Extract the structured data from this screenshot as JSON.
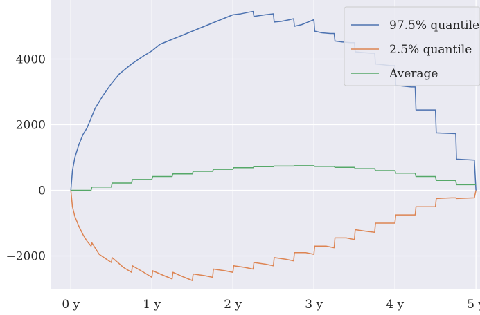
{
  "chart_data": {
    "type": "line",
    "xlabel": "",
    "ylabel": "",
    "xlim": [
      -0.25,
      5.05
    ],
    "ylim": [
      -3000,
      5800
    ],
    "x_ticks": [
      {
        "value": 0,
        "label": "0 y"
      },
      {
        "value": 1,
        "label": "1 y"
      },
      {
        "value": 2,
        "label": "2 y"
      },
      {
        "value": 3,
        "label": "3 y"
      },
      {
        "value": 4,
        "label": "4 y"
      },
      {
        "value": 5,
        "label": "5 y"
      }
    ],
    "y_ticks": [
      {
        "value": -2000,
        "label": "−2000"
      },
      {
        "value": 0,
        "label": "0"
      },
      {
        "value": 2000,
        "label": "2000"
      },
      {
        "value": 4000,
        "label": "4000"
      }
    ],
    "grid": true,
    "legend_position": "top-right",
    "series": [
      {
        "name": "97.5% quantile",
        "color": "#4c72b0",
        "x": [
          0,
          0.02,
          0.05,
          0.1,
          0.15,
          0.2,
          0.25,
          0.3,
          0.4,
          0.5,
          0.6,
          0.75,
          0.9,
          1.0,
          1.1,
          1.25,
          1.4,
          1.5,
          1.6,
          1.75,
          1.9,
          2.0,
          2.1,
          2.2,
          2.25,
          2.26,
          2.4,
          2.5,
          2.51,
          2.6,
          2.7,
          2.75,
          2.76,
          2.85,
          2.9,
          2.95,
          3.0,
          3.01,
          3.1,
          3.2,
          3.25,
          3.26,
          3.35,
          3.45,
          3.5,
          3.51,
          3.6,
          3.7,
          3.75,
          3.76,
          3.85,
          3.95,
          4.0,
          4.01,
          4.2,
          4.25,
          4.26,
          4.45,
          4.5,
          4.51,
          4.73,
          4.75,
          4.76,
          4.98,
          5.0
        ],
        "y": [
          0,
          600,
          1000,
          1400,
          1700,
          1900,
          2200,
          2500,
          2900,
          3250,
          3550,
          3850,
          4100,
          4250,
          4450,
          4600,
          4750,
          4850,
          4950,
          5100,
          5250,
          5350,
          5380,
          5430,
          5450,
          5300,
          5350,
          5380,
          5130,
          5150,
          5200,
          5230,
          5000,
          5050,
          5100,
          5150,
          5200,
          4850,
          4800,
          4780,
          4780,
          4550,
          4520,
          4500,
          4500,
          4220,
          4200,
          4180,
          4180,
          3850,
          3830,
          3800,
          3800,
          3200,
          3150,
          3150,
          2450,
          2450,
          2450,
          1750,
          1730,
          1730,
          950,
          920,
          0
        ]
      },
      {
        "name": "2.5% quantile",
        "color": "#dd8452",
        "x": [
          0,
          0.02,
          0.05,
          0.1,
          0.15,
          0.2,
          0.25,
          0.26,
          0.35,
          0.5,
          0.51,
          0.65,
          0.75,
          0.76,
          0.9,
          1.0,
          1.01,
          1.15,
          1.25,
          1.26,
          1.4,
          1.5,
          1.51,
          1.65,
          1.75,
          1.76,
          1.9,
          2.0,
          2.01,
          2.15,
          2.25,
          2.26,
          2.4,
          2.5,
          2.51,
          2.65,
          2.75,
          2.76,
          2.9,
          3.0,
          3.01,
          3.15,
          3.25,
          3.26,
          3.4,
          3.5,
          3.51,
          3.65,
          3.75,
          3.76,
          3.9,
          4.0,
          4.01,
          4.15,
          4.25,
          4.26,
          4.4,
          4.5,
          4.51,
          4.7,
          4.75,
          4.76,
          4.98,
          5.0
        ],
        "y": [
          0,
          -500,
          -800,
          -1100,
          -1350,
          -1550,
          -1700,
          -1600,
          -1950,
          -2200,
          -2050,
          -2350,
          -2500,
          -2300,
          -2500,
          -2650,
          -2450,
          -2600,
          -2700,
          -2500,
          -2650,
          -2750,
          -2550,
          -2600,
          -2650,
          -2400,
          -2450,
          -2500,
          -2300,
          -2350,
          -2400,
          -2200,
          -2250,
          -2300,
          -2050,
          -2100,
          -2150,
          -1900,
          -1900,
          -1950,
          -1700,
          -1700,
          -1750,
          -1450,
          -1450,
          -1500,
          -1200,
          -1250,
          -1280,
          -1000,
          -1000,
          -1000,
          -750,
          -750,
          -750,
          -500,
          -500,
          -500,
          -250,
          -230,
          -230,
          -250,
          -230,
          0
        ]
      },
      {
        "name": "Average",
        "color": "#55a868",
        "x": [
          0,
          0.25,
          0.26,
          0.5,
          0.51,
          0.75,
          0.76,
          1.0,
          1.01,
          1.25,
          1.26,
          1.5,
          1.51,
          1.75,
          1.76,
          2.0,
          2.01,
          2.25,
          2.26,
          2.5,
          2.51,
          2.75,
          2.76,
          3.0,
          3.01,
          3.25,
          3.26,
          3.5,
          3.51,
          3.75,
          3.76,
          4.0,
          4.01,
          4.25,
          4.26,
          4.5,
          4.51,
          4.75,
          4.76,
          5.0
        ],
        "y": [
          0,
          0,
          100,
          100,
          220,
          220,
          330,
          330,
          420,
          420,
          500,
          500,
          580,
          580,
          640,
          640,
          690,
          690,
          720,
          720,
          740,
          740,
          750,
          750,
          730,
          730,
          700,
          700,
          660,
          660,
          600,
          600,
          520,
          520,
          420,
          420,
          300,
          300,
          170,
          170
        ]
      }
    ]
  }
}
